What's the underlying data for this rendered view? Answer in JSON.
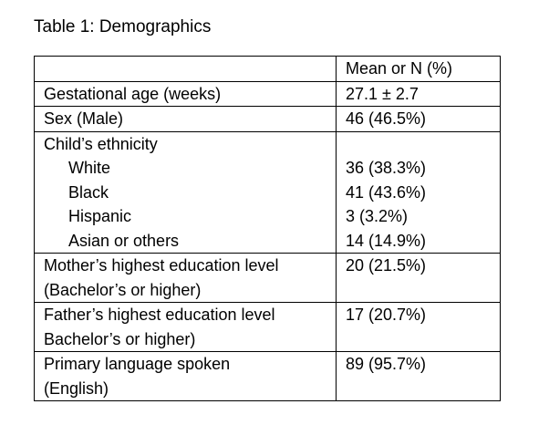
{
  "caption": "Table 1: Demographics",
  "header": {
    "label": "",
    "value": "Mean or N (%)"
  },
  "rows": [
    {
      "label": "Gestational age (weeks)",
      "value": "27.1 ± 2.7"
    },
    {
      "label": "Sex (Male)",
      "value": "46 (46.5%)"
    },
    {
      "label": "Child’s ethnicity",
      "value": "",
      "subitems": [
        {
          "label": "White",
          "value": "36 (38.3%)"
        },
        {
          "label": "Black",
          "value": "41 (43.6%)"
        },
        {
          "label": "Hispanic",
          "value": "3 (3.2%)"
        },
        {
          "label": "Asian or others",
          "value": "14 (14.9%)"
        }
      ]
    },
    {
      "label": "Mother’s highest education level",
      "label2": "(Bachelor’s or higher)",
      "value": "20 (21.5%)"
    },
    {
      "label": "Father’s highest education level",
      "label2": "Bachelor’s or higher)",
      "value": "17 (20.7%)"
    },
    {
      "label": "Primary language spoken",
      "label2": "(English)",
      "value": "89 (95.7%)"
    }
  ]
}
